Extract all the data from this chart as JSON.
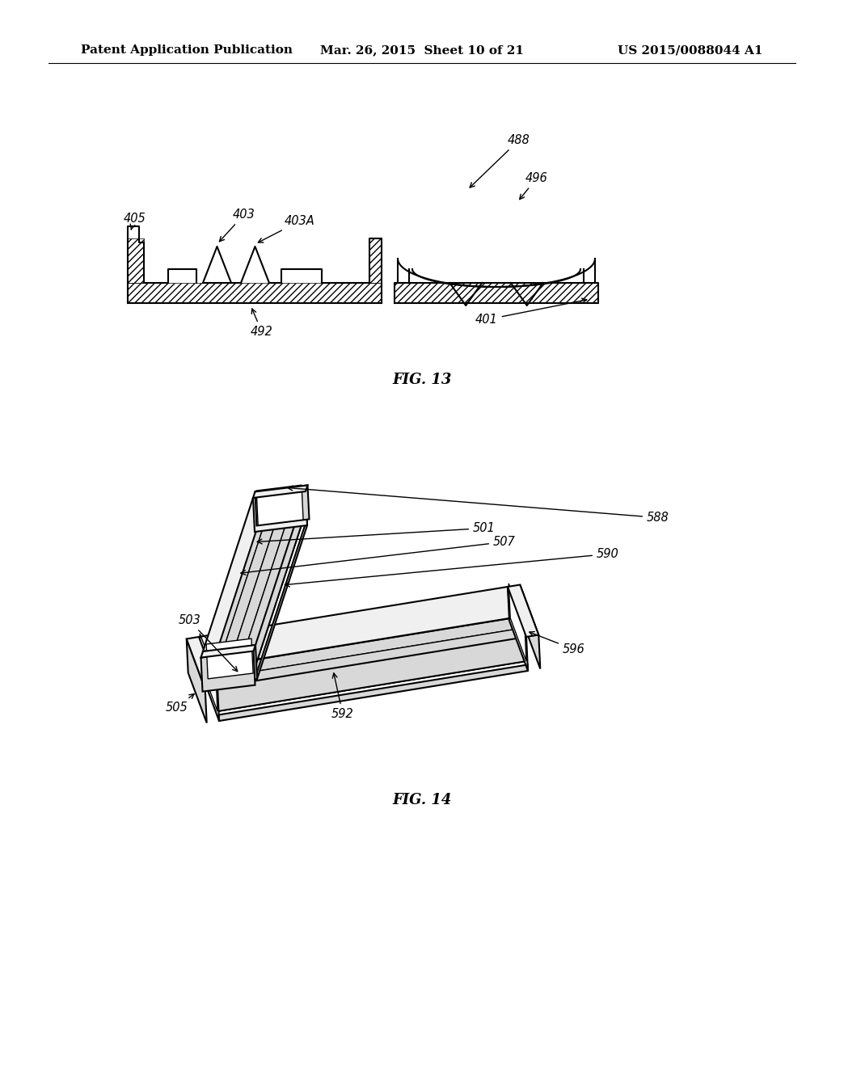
{
  "background_color": "#ffffff",
  "header_left": "Patent Application Publication",
  "header_center": "Mar. 26, 2015  Sheet 10 of 21",
  "header_right": "US 2015/0088044 A1",
  "header_fontsize": 11,
  "fig13_caption": "FIG. 13",
  "fig14_caption": "FIG. 14",
  "line_color": "#000000",
  "label_fontsize": 10.5,
  "caption_fontsize": 13
}
